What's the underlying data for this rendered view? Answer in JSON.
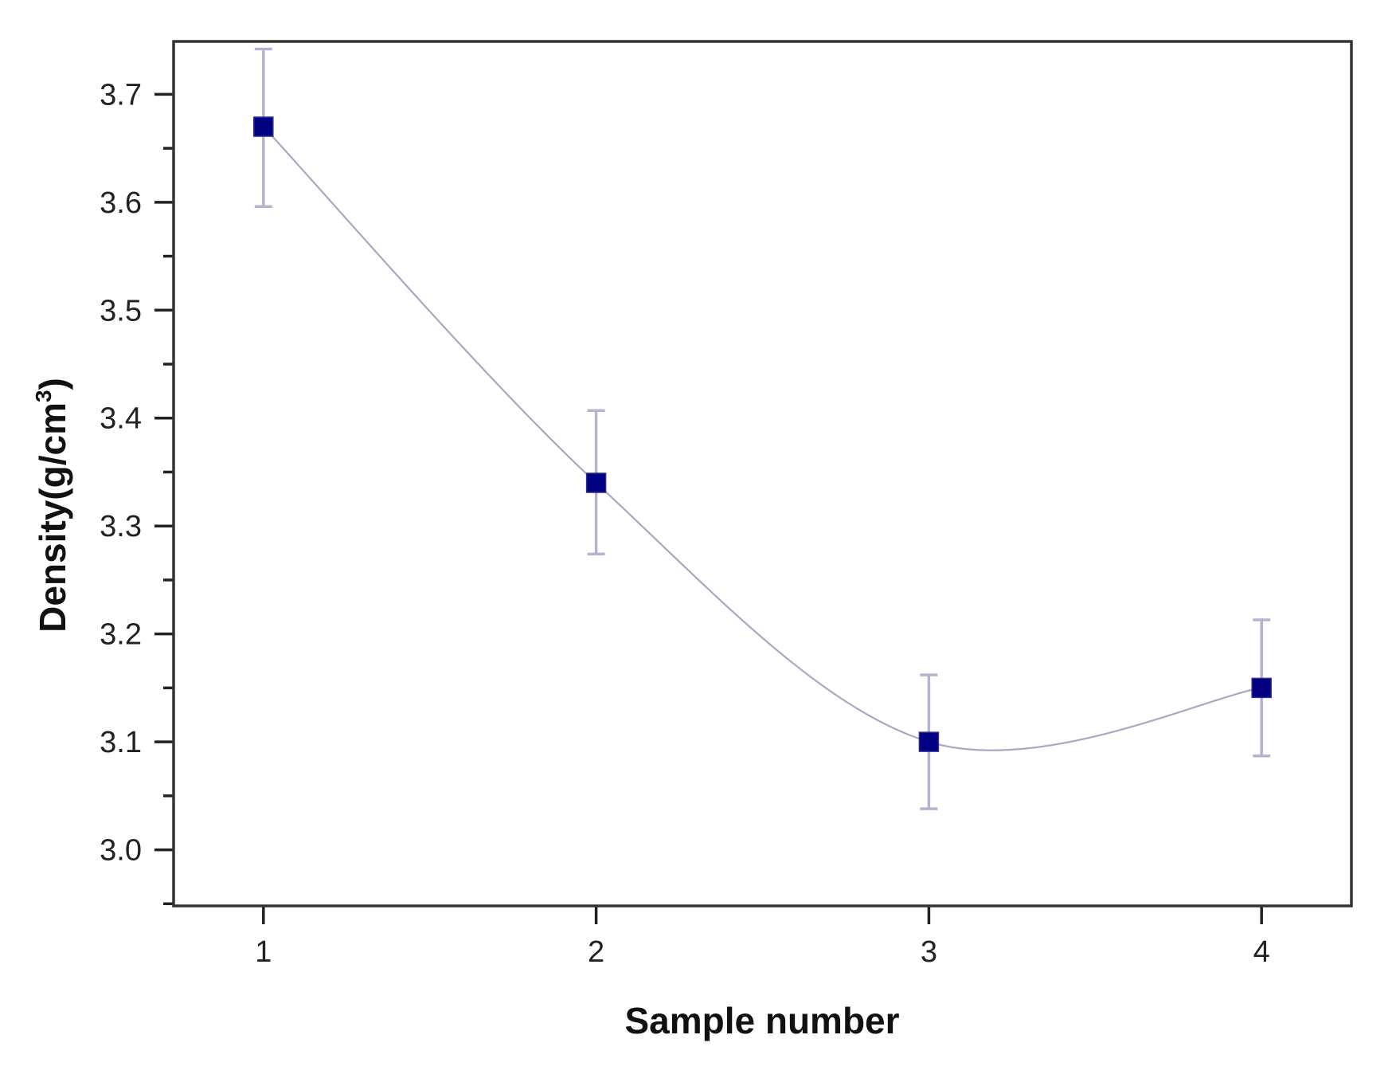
{
  "chart_data": {
    "type": "scatter",
    "title": "",
    "xlabel": "Sample number",
    "ylabel": "Density(g/cm3)",
    "ylabel_parts": {
      "main": "Density(g/cm",
      "superscript": "3",
      "close": ")"
    },
    "x": [
      1,
      2,
      3,
      4
    ],
    "x_tick_labels": [
      "1",
      "2",
      "3",
      "4"
    ],
    "y_tick_labels": [
      "3.0",
      "3.1",
      "3.2",
      "3.3",
      "3.4",
      "3.5",
      "3.6",
      "3.7"
    ],
    "y_ticks": [
      3.0,
      3.1,
      3.2,
      3.3,
      3.4,
      3.5,
      3.6,
      3.7
    ],
    "xlim": [
      0.73,
      4.27
    ],
    "ylim": [
      2.948,
      3.749
    ],
    "grid": false,
    "legend": null,
    "series": [
      {
        "name": "Density",
        "marker": "square",
        "connector": "smooth spline",
        "values": [
          3.67,
          3.34,
          3.1,
          3.15
        ],
        "error_upper": [
          3.742,
          3.407,
          3.162,
          3.213
        ],
        "error_lower": [
          3.596,
          3.274,
          3.038,
          3.087
        ]
      }
    ],
    "colors": {
      "marker": "#000080",
      "error_bar": "#b4b4cc",
      "line": "#a8a8c4",
      "axis": "#333333"
    }
  }
}
